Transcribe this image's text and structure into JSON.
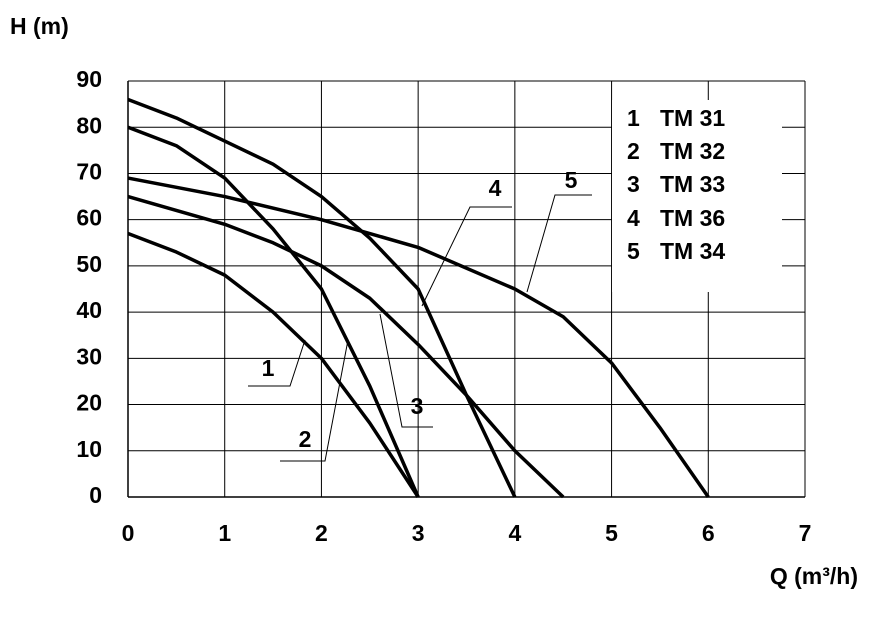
{
  "chart_data": {
    "type": "line",
    "ylabel": "H (m)",
    "xlabel": "Q (m³/h)",
    "xlim": [
      0,
      7
    ],
    "xticks": [
      0,
      1,
      2,
      3,
      4,
      5,
      6,
      7
    ],
    "ylim": [
      0,
      90
    ],
    "yticks": [
      0,
      10,
      20,
      30,
      40,
      50,
      60,
      70,
      80,
      90
    ],
    "grid": true,
    "legend": "top-right",
    "color": "#000000",
    "series": [
      {
        "label": "1",
        "name": "TM 31",
        "x": [
          0,
          0.5,
          1,
          1.5,
          2,
          2.5,
          3
        ],
        "values": [
          57,
          53,
          48,
          40,
          30,
          16,
          0
        ]
      },
      {
        "label": "2",
        "name": "TM 32",
        "x": [
          0,
          0.5,
          1,
          1.5,
          2,
          2.5,
          3
        ],
        "values": [
          80,
          76,
          69,
          58,
          45,
          24,
          0
        ]
      },
      {
        "label": "3",
        "name": "TM 33",
        "x": [
          0,
          0.5,
          1,
          1.5,
          2,
          2.5,
          3,
          3.5,
          4,
          4.5
        ],
        "values": [
          65,
          62,
          59,
          55,
          50,
          43,
          33,
          22,
          10,
          0
        ]
      },
      {
        "label": "4",
        "name": "TM 36",
        "x": [
          0,
          0.5,
          1,
          1.5,
          2,
          2.5,
          3,
          3.5,
          4
        ],
        "values": [
          86,
          82,
          77,
          72,
          65,
          56,
          45,
          22,
          0
        ]
      },
      {
        "label": "5",
        "name": "TM 34",
        "x": [
          0,
          1,
          2,
          3,
          4,
          4.5,
          5,
          5.5,
          6
        ],
        "values": [
          69,
          65,
          60,
          54,
          45,
          39,
          29,
          15,
          0
        ]
      }
    ]
  }
}
